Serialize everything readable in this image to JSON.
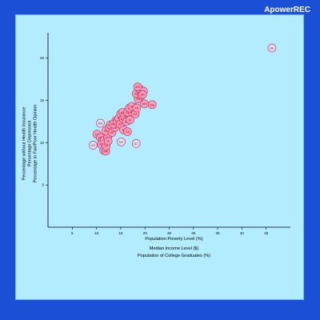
{
  "watermark": "ApowerREC",
  "chart_data": {
    "type": "scatter",
    "title": "",
    "x_axis": {
      "min": 0,
      "max": 50,
      "ticks": [
        5,
        10,
        15,
        20,
        25,
        30,
        35,
        40,
        45
      ],
      "labels": [
        "Population Poverty Level (%)",
        "Median Income Level ($)",
        "Population of College Graduates (%)"
      ]
    },
    "y_axis": {
      "min": 0,
      "max": 23,
      "ticks": [
        5,
        10,
        15,
        20
      ],
      "labels": [
        "Percentage without Health Insurance",
        "Percentage Depressed",
        "Percentage in Fair/Poor Health Opinion"
      ]
    },
    "grid": false,
    "points": [
      {
        "label": "DE",
        "x": 46.2,
        "y": 21.2
      },
      {
        "label": "CO",
        "x": 9.3,
        "y": 9.7
      },
      {
        "label": "CT",
        "x": 10.1,
        "y": 11.0
      },
      {
        "label": "NH",
        "x": 10.8,
        "y": 12.3
      },
      {
        "label": "UT",
        "x": 10.8,
        "y": 10.6
      },
      {
        "label": "MN",
        "x": 11.2,
        "y": 10.2
      },
      {
        "label": "NJ",
        "x": 11.0,
        "y": 9.8
      },
      {
        "label": "WY",
        "x": 11.5,
        "y": 9.1
      },
      {
        "label": "MA",
        "x": 11.9,
        "y": 9.0
      },
      {
        "label": "VT",
        "x": 12.0,
        "y": 9.6
      },
      {
        "label": "HI",
        "x": 11.6,
        "y": 10.3
      },
      {
        "label": "MD",
        "x": 12.3,
        "y": 10.6
      },
      {
        "label": "VA",
        "x": 11.9,
        "y": 11.4
      },
      {
        "label": "ND",
        "x": 12.6,
        "y": 11.8
      },
      {
        "label": "WA",
        "x": 12.9,
        "y": 12.1
      },
      {
        "label": "IA",
        "x": 12.4,
        "y": 10.2
      },
      {
        "label": "NE",
        "x": 13.2,
        "y": 11.2
      },
      {
        "label": "KS",
        "x": 13.8,
        "y": 11.8
      },
      {
        "label": "WI",
        "x": 14.0,
        "y": 12.6
      },
      {
        "label": "ME",
        "x": 13.5,
        "y": 12.2
      },
      {
        "label": "PA",
        "x": 14.3,
        "y": 12.5
      },
      {
        "label": "IL",
        "x": 14.6,
        "y": 12.9
      },
      {
        "label": "RI",
        "x": 15.0,
        "y": 13.4
      },
      {
        "label": "AK",
        "x": 15.4,
        "y": 13.6
      },
      {
        "label": "SD",
        "x": 14.9,
        "y": 12.2
      },
      {
        "label": "MO",
        "x": 15.5,
        "y": 12.8
      },
      {
        "label": "OH",
        "x": 15.8,
        "y": 13.1
      },
      {
        "label": "IN",
        "x": 15.6,
        "y": 11.5
      },
      {
        "label": "MI",
        "x": 16.2,
        "y": 12.5
      },
      {
        "label": "OR",
        "x": 16.4,
        "y": 13.6
      },
      {
        "label": "ID",
        "x": 16.9,
        "y": 12.7
      },
      {
        "label": "CA",
        "x": 16.4,
        "y": 11.3
      },
      {
        "label": "NV",
        "x": 17.0,
        "y": 14.1
      },
      {
        "label": "MT",
        "x": 17.4,
        "y": 13.6
      },
      {
        "label": "NC",
        "x": 17.8,
        "y": 14.2
      },
      {
        "label": "FL",
        "x": 16.8,
        "y": 14.1
      },
      {
        "label": "OK",
        "x": 17.3,
        "y": 14.3
      },
      {
        "label": "GA",
        "x": 18.0,
        "y": 13.4
      },
      {
        "label": "TN",
        "x": 18.3,
        "y": 14.1
      },
      {
        "label": "SC",
        "x": 18.6,
        "y": 15.2
      },
      {
        "label": "AZ",
        "x": 18.2,
        "y": 15.8
      },
      {
        "label": "TX",
        "x": 18.8,
        "y": 16.4
      },
      {
        "label": "KY",
        "x": 19.1,
        "y": 16.2
      },
      {
        "label": "AL",
        "x": 19.3,
        "y": 15.6
      },
      {
        "label": "NM",
        "x": 19.9,
        "y": 14.6
      },
      {
        "label": "LA",
        "x": 19.7,
        "y": 16.1
      },
      {
        "label": "AR",
        "x": 19.5,
        "y": 15.7
      },
      {
        "label": "WV",
        "x": 18.5,
        "y": 16.6
      },
      {
        "label": "MS",
        "x": 21.5,
        "y": 14.5
      },
      {
        "label": "NY",
        "x": 15.1,
        "y": 10.1
      },
      {
        "label": "DC",
        "x": 18.2,
        "y": 9.9
      }
    ]
  }
}
